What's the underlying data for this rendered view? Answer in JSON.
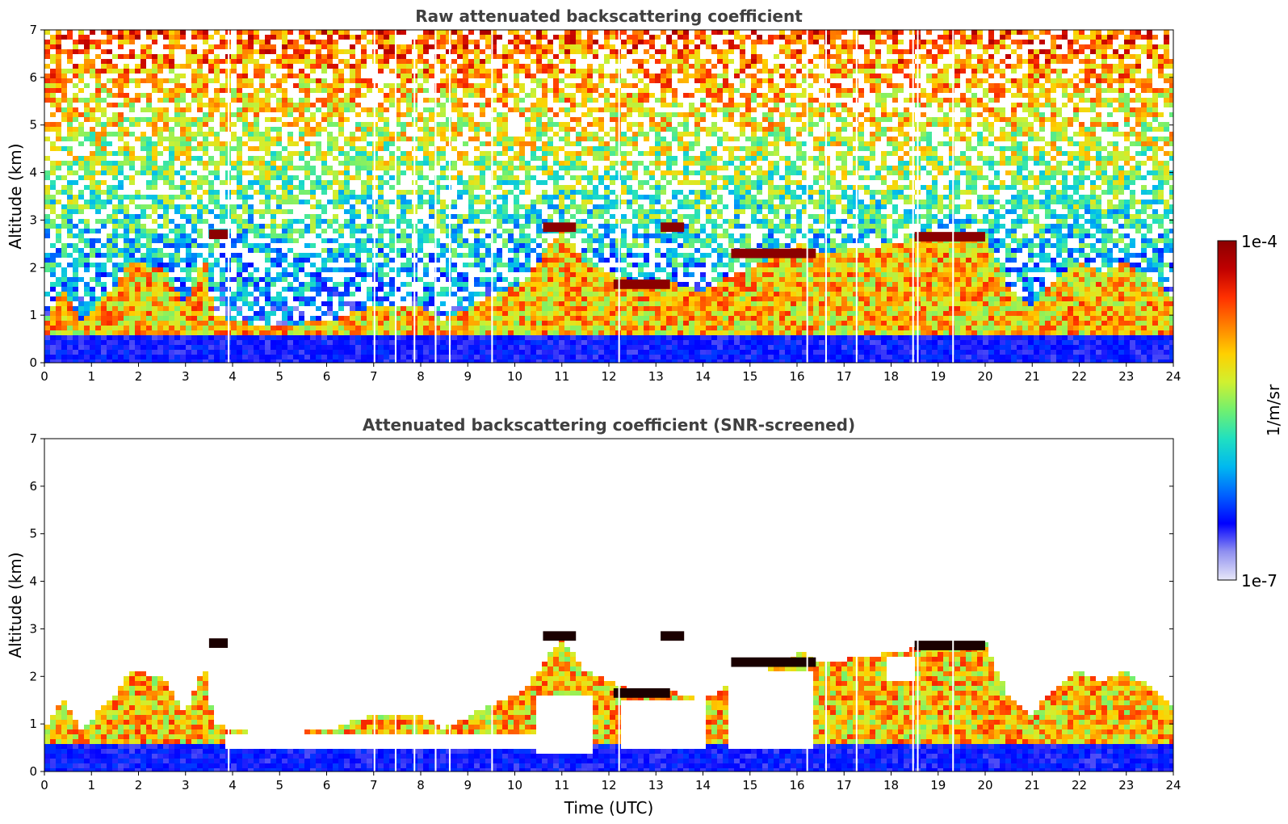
{
  "chart_data": [
    {
      "type": "heatmap",
      "title": "Raw attenuated backscattering coefficient",
      "xlabel": "",
      "ylabel": "Altitude (km)",
      "xlim": [
        0,
        24
      ],
      "ylim": [
        0,
        7
      ],
      "x_ticks": [
        "0",
        "1",
        "2",
        "3",
        "4",
        "5",
        "6",
        "7",
        "8",
        "9",
        "10",
        "11",
        "12",
        "13",
        "14",
        "15",
        "16",
        "17",
        "18",
        "19",
        "20",
        "21",
        "22",
        "23",
        "24"
      ],
      "y_ticks": [
        "0",
        "1",
        "2",
        "3",
        "4",
        "5",
        "6",
        "7"
      ],
      "screened": false,
      "layer_top_km": [
        [
          0,
          0.9
        ],
        [
          0.4,
          1.5
        ],
        [
          0.8,
          0.9
        ],
        [
          1.5,
          1.6
        ],
        [
          1.8,
          2.1
        ],
        [
          2.5,
          2.0
        ],
        [
          3.0,
          1.2
        ],
        [
          3.4,
          2.3
        ],
        [
          3.6,
          1.0
        ],
        [
          4.5,
          0.8
        ],
        [
          6.0,
          0.85
        ],
        [
          7.0,
          1.2
        ],
        [
          8.0,
          1.2
        ],
        [
          8.5,
          0.9
        ],
        [
          9.5,
          1.4
        ],
        [
          10.2,
          1.7
        ],
        [
          11.0,
          2.8
        ],
        [
          11.5,
          2.1
        ],
        [
          12.5,
          1.7
        ],
        [
          13.2,
          1.7
        ],
        [
          14.0,
          1.5
        ],
        [
          14.5,
          1.8
        ],
        [
          15.5,
          2.2
        ],
        [
          16.1,
          2.5
        ],
        [
          16.5,
          2.3
        ],
        [
          17.5,
          2.4
        ],
        [
          18.5,
          2.6
        ],
        [
          19.5,
          2.7
        ],
        [
          20.0,
          2.7
        ],
        [
          20.5,
          1.6
        ],
        [
          21.0,
          1.2
        ],
        [
          21.5,
          1.8
        ],
        [
          22.0,
          2.1
        ],
        [
          22.5,
          1.9
        ],
        [
          23.0,
          2.1
        ],
        [
          23.5,
          1.8
        ],
        [
          24.0,
          1.4
        ]
      ],
      "elevated_layers": [
        {
          "x_start": 3.5,
          "x_end": 3.9,
          "altitude_km": 2.7
        },
        {
          "x_start": 10.6,
          "x_end": 11.3,
          "altitude_km": 2.85
        },
        {
          "x_start": 12.1,
          "x_end": 13.3,
          "altitude_km": 1.65
        },
        {
          "x_start": 13.1,
          "x_end": 13.6,
          "altitude_km": 2.85
        },
        {
          "x_start": 14.6,
          "x_end": 16.4,
          "altitude_km": 2.3
        },
        {
          "x_start": 18.5,
          "x_end": 20.0,
          "altitude_km": 2.65
        }
      ],
      "data_gaps_hours": [
        3.9,
        7.0,
        7.45,
        7.85,
        8.3,
        8.6,
        9.5,
        12.2,
        16.2,
        16.6,
        17.25,
        18.45,
        18.55,
        19.3
      ]
    },
    {
      "type": "heatmap",
      "title": "Attenuated backscattering coefficient (SNR-screened)",
      "xlabel": "Time (UTC)",
      "ylabel": "Altitude (km)",
      "xlim": [
        0,
        24
      ],
      "ylim": [
        0,
        7
      ],
      "x_ticks": [
        "0",
        "1",
        "2",
        "3",
        "4",
        "5",
        "6",
        "7",
        "8",
        "9",
        "10",
        "11",
        "12",
        "13",
        "14",
        "15",
        "16",
        "17",
        "18",
        "19",
        "20",
        "21",
        "22",
        "23",
        "24"
      ],
      "y_ticks": [
        "0",
        "1",
        "2",
        "3",
        "4",
        "5",
        "6",
        "7"
      ],
      "screened": true,
      "clear_regions_removed": [
        {
          "x_start": 3.8,
          "x_end": 10.5,
          "y_min_km": 0.45,
          "y_max_km": 0.75
        },
        {
          "x_start": 10.5,
          "x_end": 11.6,
          "y_min_km": 0.4,
          "y_max_km": 1.6
        },
        {
          "x_start": 12.2,
          "x_end": 14.0,
          "y_min_km": 0.45,
          "y_max_km": 1.5
        },
        {
          "x_start": 14.6,
          "x_end": 16.4,
          "y_min_km": 0.5,
          "y_max_km": 2.1
        },
        {
          "x_start": 17.9,
          "x_end": 18.5,
          "y_min_km": 1.9,
          "y_max_km": 2.4
        }
      ]
    }
  ],
  "colorbar": {
    "max_label": "1e-4",
    "min_label": "1e-7",
    "unit_label": "1/m/sr",
    "colormap": [
      "#e8e8f8",
      "#9090f0",
      "#0000ff",
      "#0060ff",
      "#00b8f0",
      "#20e0c0",
      "#70f070",
      "#d0f030",
      "#ffd000",
      "#ff8000",
      "#ff3000",
      "#c00000",
      "#8b0000"
    ]
  }
}
